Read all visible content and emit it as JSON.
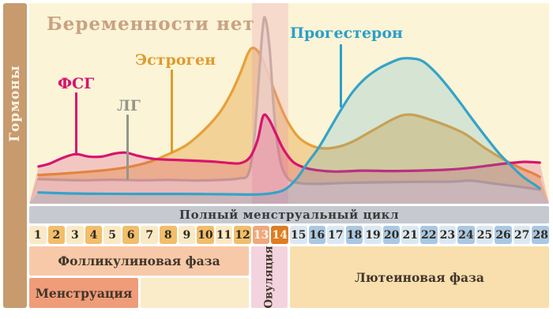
{
  "title": "Беременности нет",
  "sidebar": {
    "label": "Гормоны"
  },
  "labels": {
    "fsh": {
      "text": "ФСГ",
      "color": "#D6156F"
    },
    "lh": {
      "text": "ЛГ",
      "color": "#94968A"
    },
    "estrogen": {
      "text": "Эстроген",
      "color": "#DD9C2E"
    },
    "progesterone": {
      "text": "Прогестерон",
      "color": "#2B9FC9"
    }
  },
  "chart_data": {
    "type": "line",
    "title": "Беременности нет",
    "ylabel": "Гормоны",
    "xlabel": "",
    "x_range": [
      0.5,
      28.5
    ],
    "y_range": [
      0,
      100
    ],
    "grid": false,
    "legend_position": "inline-labels",
    "categories": [
      "1",
      "2",
      "3",
      "4",
      "5",
      "6",
      "7",
      "8",
      "9",
      "10",
      "11",
      "12",
      "13",
      "14",
      "15",
      "16",
      "17",
      "18",
      "19",
      "20",
      "21",
      "22",
      "23",
      "24",
      "25",
      "26",
      "27",
      "28"
    ],
    "series": [
      {
        "id": "estrogen",
        "name": "Эстроген",
        "color": "#E6A038",
        "fill": "rgba(230,160,56,0.40)",
        "points": [
          [
            1,
            13.5
          ],
          [
            2,
            14
          ],
          [
            3,
            14.7
          ],
          [
            4,
            15.5
          ],
          [
            5,
            16.5
          ],
          [
            6,
            18
          ],
          [
            7,
            20.5
          ],
          [
            8,
            24.5
          ],
          [
            9,
            29.5
          ],
          [
            10,
            38
          ],
          [
            10.8,
            47
          ],
          [
            11.4,
            57
          ],
          [
            11.9,
            68
          ],
          [
            12.3,
            78
          ],
          [
            12.6,
            80.5
          ],
          [
            13,
            76
          ],
          [
            13.4,
            66
          ],
          [
            13.9,
            53
          ],
          [
            14.4,
            42
          ],
          [
            15,
            33.5
          ],
          [
            15.7,
            29
          ],
          [
            16.4,
            27.5
          ],
          [
            17.2,
            28.5
          ],
          [
            18,
            31.5
          ],
          [
            19,
            37
          ],
          [
            20,
            42.5
          ],
          [
            20.6,
            45
          ],
          [
            21.2,
            45.2
          ],
          [
            22,
            43
          ],
          [
            23,
            39.5
          ],
          [
            24,
            35
          ],
          [
            25,
            28
          ],
          [
            26,
            22
          ],
          [
            27,
            17
          ],
          [
            27.6,
            14.5
          ],
          [
            28,
            12.5
          ]
        ]
      },
      {
        "id": "lh",
        "name": "ЛГ",
        "color": "#C2B49F",
        "fill": "rgba(240,231,212,0.80)",
        "points": [
          [
            1,
            11.3
          ],
          [
            2,
            11
          ],
          [
            3.5,
            10.7
          ],
          [
            5,
            11
          ],
          [
            6.5,
            10.7
          ],
          [
            8,
            10.9
          ],
          [
            9.5,
            10.6
          ],
          [
            11,
            11
          ],
          [
            11.8,
            11.7
          ],
          [
            12.3,
            14
          ],
          [
            12.6,
            30
          ],
          [
            12.85,
            62
          ],
          [
            13.05,
            88
          ],
          [
            13.2,
            96.5
          ],
          [
            13.45,
            80
          ],
          [
            13.7,
            45
          ],
          [
            14,
            22
          ],
          [
            14.4,
            12
          ],
          [
            15,
            9.3
          ],
          [
            16,
            8.8
          ],
          [
            17.5,
            9.3
          ],
          [
            19,
            9.6
          ],
          [
            20.5,
            9.8
          ],
          [
            22,
            9.9
          ],
          [
            23.3,
            10
          ],
          [
            24.3,
            10.5
          ],
          [
            25.5,
            9
          ],
          [
            26.5,
            7.8
          ],
          [
            27.3,
            6.8
          ],
          [
            28,
            5.8
          ]
        ]
      },
      {
        "id": "fsh",
        "name": "ФСГ",
        "color": "#D6156F",
        "fill": "rgba(214,21,111,0.20)",
        "points": [
          [
            1,
            18
          ],
          [
            1.6,
            19.5
          ],
          [
            2.3,
            22.5
          ],
          [
            3,
            24.5
          ],
          [
            3.7,
            23.2
          ],
          [
            4.4,
            23.2
          ],
          [
            5.1,
            24.8
          ],
          [
            5.7,
            25.3
          ],
          [
            6.4,
            23.5
          ],
          [
            7.2,
            22
          ],
          [
            8.2,
            21.5
          ],
          [
            9.5,
            21
          ],
          [
            10.5,
            20.5
          ],
          [
            11.3,
            19.8
          ],
          [
            11.9,
            19.8
          ],
          [
            12.4,
            23
          ],
          [
            12.8,
            32
          ],
          [
            13.1,
            44.6
          ],
          [
            13.4,
            43
          ],
          [
            13.8,
            35
          ],
          [
            14.2,
            27
          ],
          [
            14.7,
            20.5
          ],
          [
            15.3,
            17.5
          ],
          [
            16,
            16
          ],
          [
            17,
            15.3
          ],
          [
            18.5,
            15.8
          ],
          [
            20,
            15.6
          ],
          [
            21.5,
            15.8
          ],
          [
            23,
            16.3
          ],
          [
            24.2,
            17.2
          ],
          [
            25.2,
            18.4
          ],
          [
            26.2,
            19.6
          ],
          [
            27.2,
            20.4
          ],
          [
            28,
            20
          ]
        ]
      },
      {
        "id": "progesterone",
        "name": "Прогестерон",
        "color": "#35A3C9",
        "fill": "rgba(70,165,200,0.20)",
        "points": [
          [
            1,
            4.3
          ],
          [
            2.5,
            3.8
          ],
          [
            4,
            3.6
          ],
          [
            6,
            3.5
          ],
          [
            8,
            3.5
          ],
          [
            10,
            3.4
          ],
          [
            11.5,
            3.3
          ],
          [
            12.7,
            3.2
          ],
          [
            13.6,
            3.9
          ],
          [
            14.3,
            6
          ],
          [
            14.9,
            11.5
          ],
          [
            15.5,
            20
          ],
          [
            16.1,
            28
          ],
          [
            16.7,
            38
          ],
          [
            17.3,
            48
          ],
          [
            17.9,
            57
          ],
          [
            18.6,
            64.5
          ],
          [
            19.3,
            69.5
          ],
          [
            19.9,
            72.5
          ],
          [
            20.5,
            74.8
          ],
          [
            21.1,
            75
          ],
          [
            21.7,
            73.5
          ],
          [
            22.4,
            67.5
          ],
          [
            23.1,
            59.5
          ],
          [
            23.8,
            50.5
          ],
          [
            24.4,
            42.5
          ],
          [
            25.1,
            33.5
          ],
          [
            25.8,
            25
          ],
          [
            26.5,
            18
          ],
          [
            27.1,
            12.5
          ],
          [
            27.7,
            8.5
          ],
          [
            28,
            6.5
          ]
        ]
      }
    ],
    "ovulation_band": {
      "from": 12.5,
      "to": 14.45,
      "color": "#E98EAF",
      "opacity": 0.26,
      "drawn_after_series": "lh"
    }
  },
  "cycle": {
    "bar_label": "Полный менструальный цикл",
    "days": [
      {
        "n": "1",
        "type": "foll_odd"
      },
      {
        "n": "2",
        "type": "foll_even"
      },
      {
        "n": "3",
        "type": "foll_odd"
      },
      {
        "n": "4",
        "type": "foll_even"
      },
      {
        "n": "5",
        "type": "foll_odd"
      },
      {
        "n": "6",
        "type": "foll_even"
      },
      {
        "n": "7",
        "type": "foll_odd"
      },
      {
        "n": "8",
        "type": "foll_even"
      },
      {
        "n": "9",
        "type": "foll_odd"
      },
      {
        "n": "10",
        "type": "foll_even"
      },
      {
        "n": "11",
        "type": "foll_odd"
      },
      {
        "n": "12",
        "type": "foll_even"
      },
      {
        "n": "13",
        "type": "ovu_13"
      },
      {
        "n": "14",
        "type": "ovu_14"
      },
      {
        "n": "15",
        "type": "lut_odd"
      },
      {
        "n": "16",
        "type": "lut_even"
      },
      {
        "n": "17",
        "type": "lut_odd"
      },
      {
        "n": "18",
        "type": "lut_even"
      },
      {
        "n": "19",
        "type": "lut_odd"
      },
      {
        "n": "20",
        "type": "lut_even"
      },
      {
        "n": "21",
        "type": "lut_odd"
      },
      {
        "n": "22",
        "type": "lut_even"
      },
      {
        "n": "23",
        "type": "lut_odd"
      },
      {
        "n": "24",
        "type": "lut_even"
      },
      {
        "n": "25",
        "type": "lut_odd"
      },
      {
        "n": "26",
        "type": "lut_even"
      },
      {
        "n": "27",
        "type": "lut_odd"
      },
      {
        "n": "28",
        "type": "lut_even"
      }
    ],
    "phases": {
      "follicular": "Фолликулиновая фаза",
      "menstruation": "Менструация",
      "ovulation": "Овуляция",
      "luteal": "Лютеиновая фаза"
    }
  },
  "colors": {
    "background": "#FFFFFF",
    "chart_bg": "#FBF4D6",
    "sidebar_bg": "#C79B6E",
    "sidebar_text": "#FBF3E4",
    "title_text": "#C9A284",
    "cycle_bar_bg": "#C6CAD0",
    "cycle_bar_text": "#3B3B3B",
    "day_text": "#33291E",
    "day_text_light": "#FFF6E8",
    "foll_odd": "#FAE9C6",
    "foll_even": "#F1BE6B",
    "ovu_13": "#EFA87D",
    "ovu_14": "#DF7D22",
    "lut_odd": "#DAE8F3",
    "lut_even": "#AAC8E3",
    "follicular_bg": "#F8C9A9",
    "menstruation_bg": "#EF9C79",
    "menstruation_rest_bg": "#FAECC9",
    "ovulation_bg": "#F3D3DE",
    "luteal_bg": "#F9DFAE",
    "phase_text": "#42362A"
  }
}
